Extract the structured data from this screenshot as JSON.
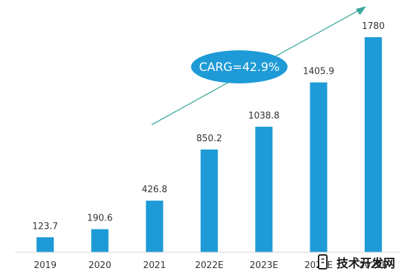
{
  "chart_data": {
    "type": "bar",
    "title": "",
    "xlabel": "",
    "ylabel": "",
    "categories": [
      "2019",
      "2020",
      "2021",
      "2022E",
      "2023E",
      "2024E",
      "2025E"
    ],
    "values": [
      123.7,
      190.6,
      426.8,
      850.2,
      1038.8,
      1405.9,
      1780
    ],
    "value_labels": [
      "123.7",
      "190.6",
      "426.8",
      "850.2",
      "1038.8",
      "1405.9",
      "1780"
    ],
    "ylim": [
      0,
      1780
    ],
    "grid": false,
    "bar_color": "#1e9bd7",
    "axis_color": "#d0d0d0",
    "annotation": {
      "text": "CARG=42.9%",
      "fill": "#1e9bd7",
      "arrow_color": "#3aa89a"
    }
  },
  "watermark": {
    "text": "技术开发网",
    "icon": "watermark-logo-icon"
  }
}
